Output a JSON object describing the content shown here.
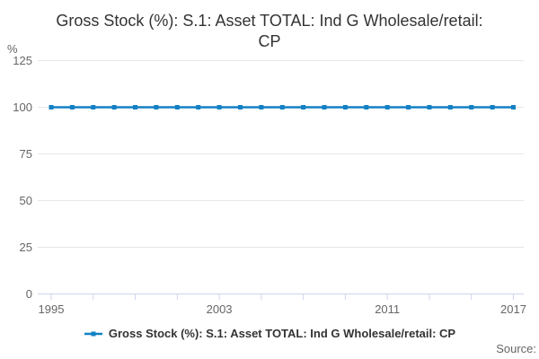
{
  "title": {
    "line1": "Gross Stock (%): S.1: Asset TOTAL: Ind G Wholesale/retail:",
    "line2": "CP"
  },
  "y_axis": {
    "title": "%"
  },
  "legend": {
    "label": "Gross Stock (%): S.1: Asset TOTAL: Ind G Wholesale/retail: CP"
  },
  "footer": {
    "source_label": "Source:"
  },
  "colors": {
    "series": "#1380c4",
    "gridline": "#e6e6e6",
    "axis_line": "#ccd6eb",
    "title_text": "#333333",
    "axis_label_text": "#666666",
    "legend_text": "#333333"
  },
  "chart_data": {
    "type": "line",
    "title": "Gross Stock (%): S.1: Asset TOTAL: Ind G Wholesale/retail: CP",
    "xlabel": "",
    "ylabel": "%",
    "x": [
      1995,
      1996,
      1997,
      1998,
      1999,
      2000,
      2001,
      2002,
      2003,
      2004,
      2005,
      2006,
      2007,
      2008,
      2009,
      2010,
      2011,
      2012,
      2013,
      2014,
      2015,
      2016,
      2017
    ],
    "series": [
      {
        "name": "Gross Stock (%): S.1: Asset TOTAL: Ind G Wholesale/retail: CP",
        "values": [
          100,
          100,
          100,
          100,
          100,
          100,
          100,
          100,
          100,
          100,
          100,
          100,
          100,
          100,
          100,
          100,
          100,
          100,
          100,
          100,
          100,
          100,
          100
        ]
      }
    ],
    "ylim": [
      0,
      125
    ],
    "yticks": [
      0,
      25,
      50,
      75,
      100,
      125
    ],
    "xticks": [
      1995,
      1997,
      1999,
      2001,
      2003,
      2005,
      2007,
      2009,
      2011,
      2013,
      2015,
      2017
    ],
    "xtick_labels": [
      1995,
      2003,
      2011,
      2017
    ],
    "grid": true,
    "marker": "square",
    "legend_position": "bottom"
  }
}
